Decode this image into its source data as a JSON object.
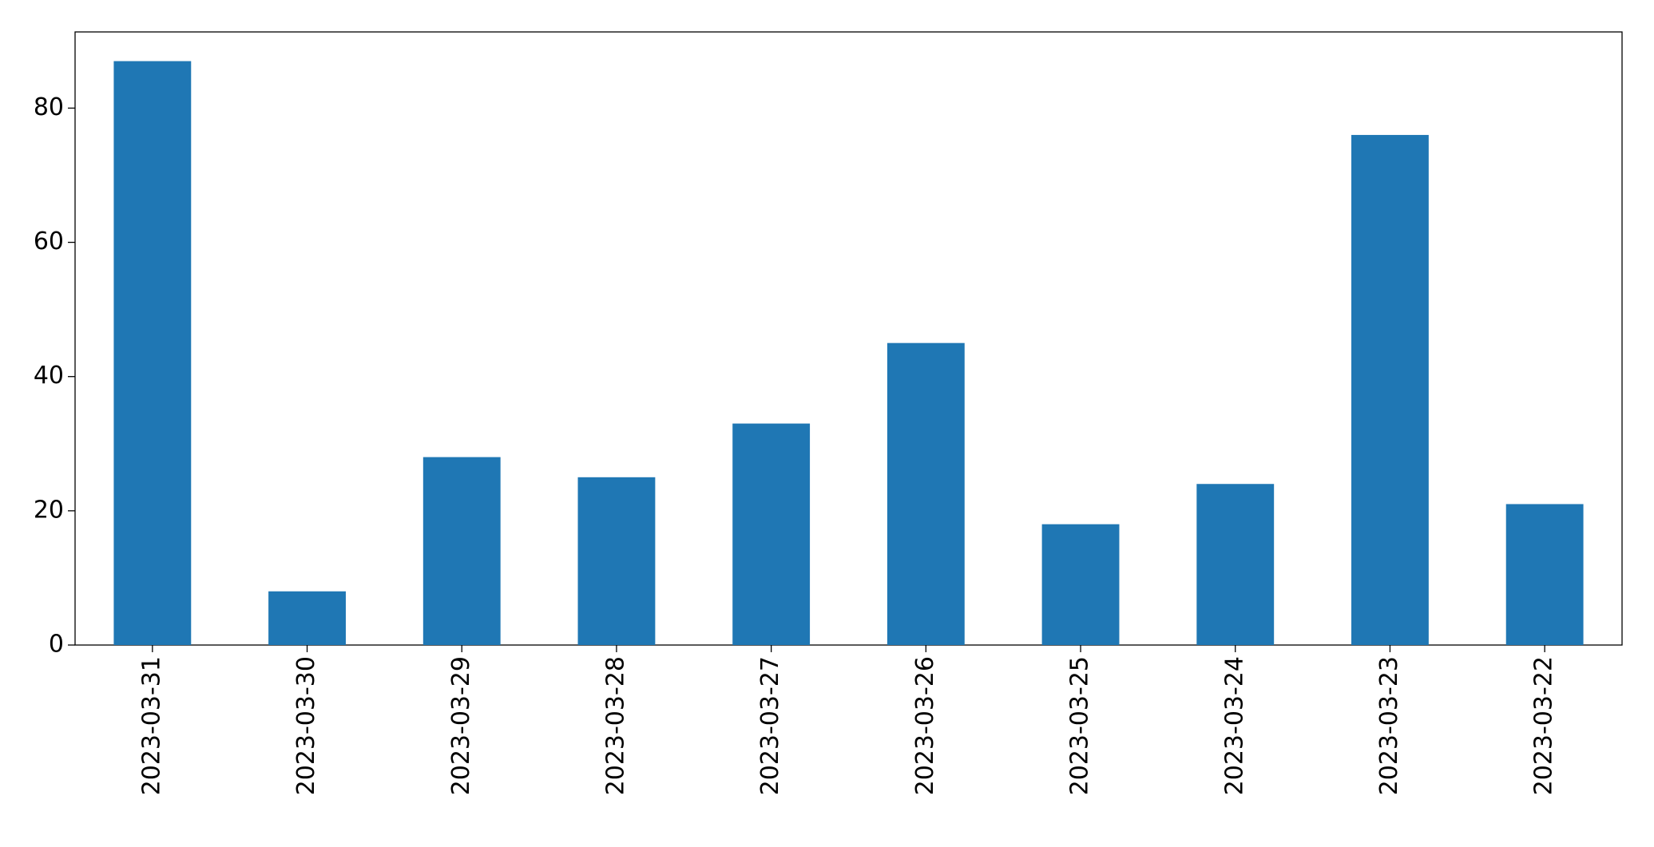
{
  "chart_data": {
    "type": "bar",
    "categories": [
      "2023-03-31",
      "2023-03-30",
      "2023-03-29",
      "2023-03-28",
      "2023-03-27",
      "2023-03-26",
      "2023-03-25",
      "2023-03-24",
      "2023-03-23",
      "2023-03-22"
    ],
    "values": [
      87,
      8,
      28,
      25,
      33,
      45,
      18,
      24,
      76,
      21
    ],
    "color": "#1f77b4",
    "ylim": [
      0,
      91.35
    ],
    "yticks": [
      0,
      20,
      40,
      60,
      80
    ],
    "grid": false
  }
}
